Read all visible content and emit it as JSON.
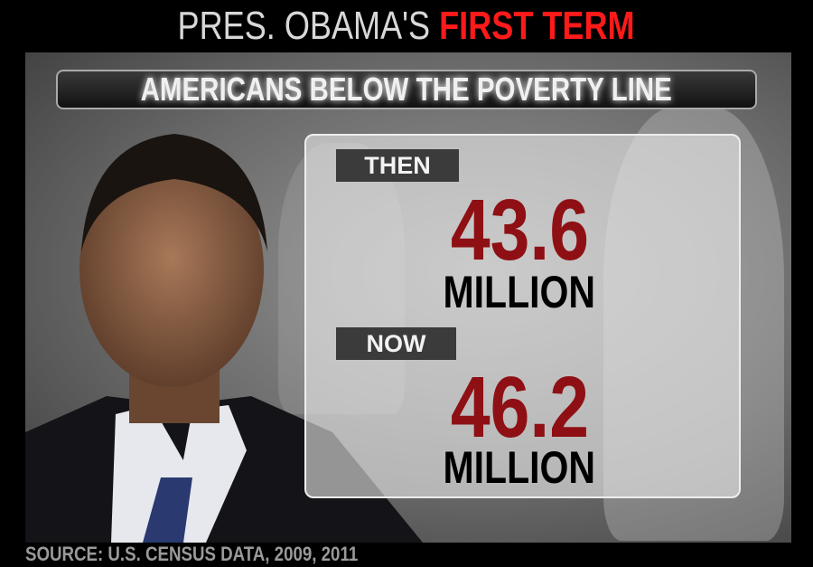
{
  "header": {
    "title_prefix": "PRES. OBAMA'S",
    "title_highlight": "FIRST TERM"
  },
  "subtitle": "AMERICANS BELOW THE POVERTY LINE",
  "then": {
    "label": "THEN",
    "value": "43.6",
    "unit": "MILLION"
  },
  "now": {
    "label": "NOW",
    "value": "46.2",
    "unit": "MILLION"
  },
  "source": "SOURCE: U.S. CENSUS DATA, 2009, 2011",
  "colors": {
    "highlight": "#ff1a1a",
    "value": "#8e1014",
    "tag": "#3b3b3b"
  }
}
